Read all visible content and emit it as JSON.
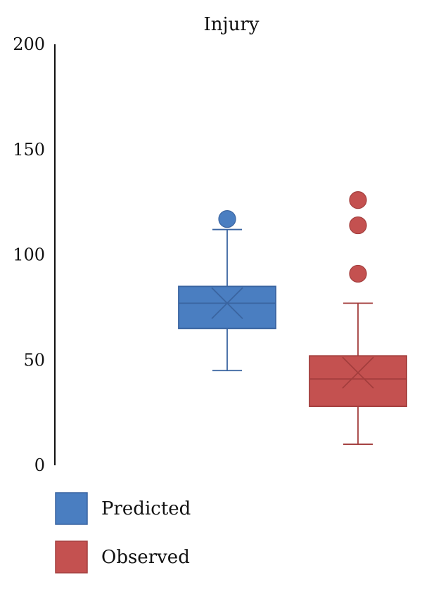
{
  "chart_data": {
    "type": "box",
    "title": "Injury",
    "ylim": [
      0,
      200
    ],
    "yticks": [
      "0",
      "50",
      "100",
      "150",
      "200"
    ],
    "grid": false,
    "legend_position": "bottom-left",
    "series": [
      {
        "name": "Predicted",
        "color": "#4a7ec1",
        "stroke": "#3a64a0",
        "whisker_low": 45,
        "q1": 65,
        "median": 77,
        "mean": 77,
        "q3": 85,
        "whisker_high": 112,
        "outliers": [
          117
        ]
      },
      {
        "name": "Observed",
        "color": "#c45150",
        "stroke": "#a33e3d",
        "whisker_low": 10,
        "q1": 28,
        "median": 41,
        "mean": 44,
        "q3": 52,
        "whisker_high": 77,
        "outliers": [
          91,
          114,
          126
        ]
      }
    ]
  }
}
